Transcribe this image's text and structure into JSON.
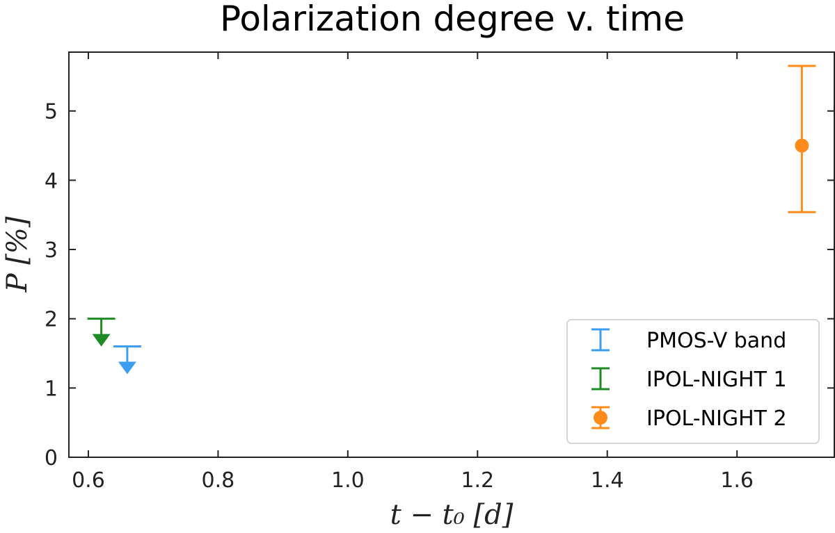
{
  "chart_data": {
    "type": "scatter",
    "title": "Polarization degree v. time",
    "xlabel": "t − t₀ [d]",
    "ylabel": "P [%]",
    "xlim": [
      0.57,
      1.75
    ],
    "ylim": [
      0,
      5.85
    ],
    "x_ticks": [
      "0.6",
      "0.8",
      "1.0",
      "1.2",
      "1.4",
      "1.6"
    ],
    "y_ticks": [
      "0",
      "1",
      "2",
      "3",
      "4",
      "5"
    ],
    "legend_position": "lower-right",
    "grid": false,
    "series": [
      {
        "name": "PMOS-V band",
        "color": "#3d9ef0",
        "marker": "upper-limit",
        "points": [
          {
            "x": 0.66,
            "y": 1.6,
            "limit": "upper"
          }
        ]
      },
      {
        "name": "IPOL-NIGHT 1",
        "color": "#1f8b24",
        "marker": "upper-limit",
        "points": [
          {
            "x": 0.62,
            "y": 2.0,
            "limit": "upper"
          }
        ]
      },
      {
        "name": "IPOL-NIGHT 2",
        "color": "#ff8c1a",
        "marker": "circle",
        "points": [
          {
            "x": 1.7,
            "y": 4.5,
            "yerr_low": 3.54,
            "yerr_high": 5.65
          }
        ]
      }
    ]
  }
}
